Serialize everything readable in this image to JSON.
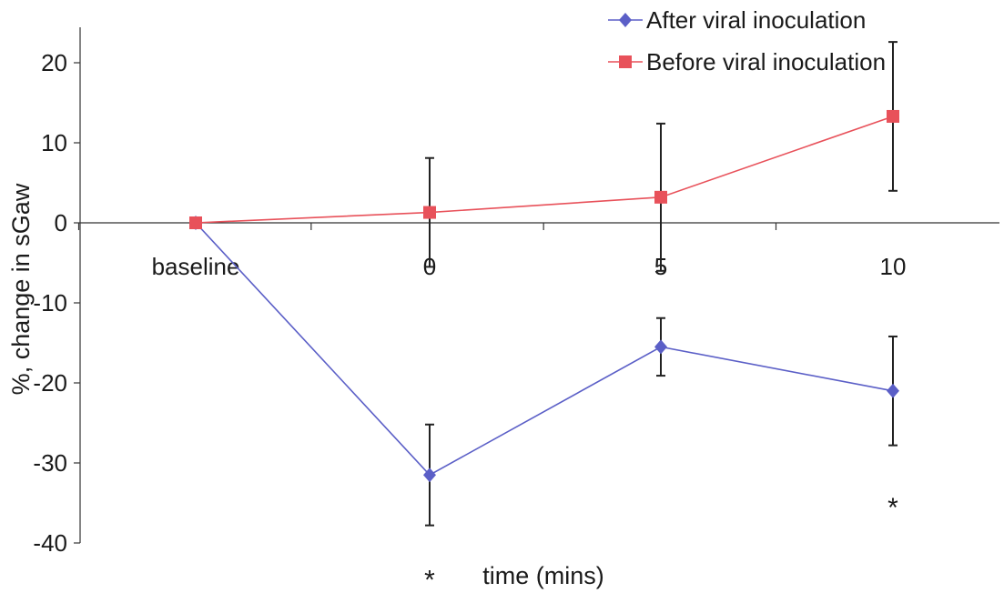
{
  "chart_data": {
    "type": "line",
    "categories": [
      "baseline",
      "0",
      "5",
      "10"
    ],
    "xlabel": "time (mins)",
    "ylabel": "%, change in sGaw",
    "ylim": [
      -40,
      25
    ],
    "yticks": [
      "20",
      "10",
      "0",
      "-10",
      "-20",
      "-30",
      "-40"
    ],
    "yticks_values": [
      20,
      10,
      0,
      -10,
      -20,
      -30,
      -40
    ],
    "grid": false,
    "legend_position": "top-right",
    "series": [
      {
        "name": "After viral inoculation",
        "color": "#5b5fc7",
        "marker": "diamond",
        "values": [
          0,
          -31.5,
          -15.5,
          -21
        ],
        "error": [
          0,
          6.3,
          3.6,
          6.8
        ]
      },
      {
        "name": "Before viral inoculation",
        "color": "#e8515a",
        "marker": "square",
        "values": [
          0,
          1.3,
          3.2,
          13.3
        ],
        "error": [
          0,
          6.8,
          9.2,
          9.3
        ]
      }
    ],
    "annotations": [
      {
        "text": "*",
        "category": "0",
        "y": -43
      },
      {
        "text": "*",
        "category": "10",
        "y": -34
      }
    ]
  }
}
